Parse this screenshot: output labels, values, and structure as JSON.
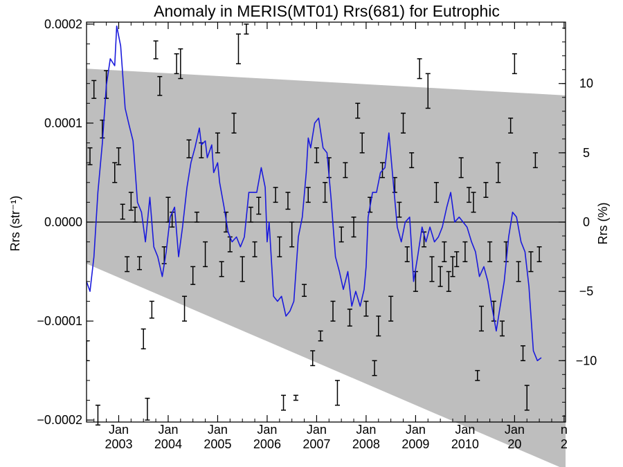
{
  "chart_data": {
    "type": "line",
    "title": "Anomaly in MERIS(MT01) Rrs(681) for Eutrophic",
    "ylabel": "Rrs (str⁻¹)",
    "ylabel_right": "Rrs (%)",
    "xlabel": "",
    "xlim": [
      2002.35,
      2012.03
    ],
    "ylim": [
      -0.000202,
      0.000202
    ],
    "ylim_right": [
      -14.43,
      14.43
    ],
    "x_ticks": [
      {
        "x": 2003.0,
        "line1": "Jan",
        "line2": "2003"
      },
      {
        "x": 2004.0,
        "line1": "Jan",
        "line2": "2004"
      },
      {
        "x": 2005.0,
        "line1": "Jan",
        "line2": "2005"
      },
      {
        "x": 2006.0,
        "line1": "Jan",
        "line2": "2006"
      },
      {
        "x": 2007.0,
        "line1": "Jan",
        "line2": "2007"
      },
      {
        "x": 2008.0,
        "line1": "Jan",
        "line2": "2008"
      },
      {
        "x": 2009.0,
        "line1": "Jan",
        "line2": "2009"
      },
      {
        "x": 2010.0,
        "line1": "Jan",
        "line2": "2010"
      },
      {
        "x": 2011.0,
        "line1": "Jan",
        "line2": "20"
      },
      {
        "x": 2012.0,
        "line1": "n",
        "line2": "2"
      }
    ],
    "y_ticks": [
      {
        "value": 0.0002,
        "label": "0.0002"
      },
      {
        "value": 0.0001,
        "label": "0.0001"
      },
      {
        "value": 0.0,
        "label": "0.0000"
      },
      {
        "value": -0.0001,
        "label": "−0.0001"
      },
      {
        "value": -0.0002,
        "label": "−0.0002"
      }
    ],
    "y_ticks_right": [
      {
        "value": 10,
        "label": "10"
      },
      {
        "value": 5,
        "label": "5"
      },
      {
        "value": 0,
        "label": "0"
      },
      {
        "value": -5,
        "label": "−5"
      },
      {
        "value": -10,
        "label": "−10"
      }
    ],
    "zero_line": 0.0,
    "shaded_band": {
      "color": "#bebebe",
      "upper": [
        [
          2002.35,
          0.000155
        ],
        [
          2012.03,
          0.000128
        ]
      ],
      "lower": [
        [
          2002.35,
          -4.2e-05
        ],
        [
          2012.03,
          -0.00025
        ]
      ]
    },
    "series": [
      {
        "color": "#1a1adc",
        "style": "line",
        "points": [
          [
            2002.35,
            -6e-05
          ],
          [
            2002.42,
            -7e-05
          ],
          [
            2002.5,
            -3.5e-05
          ],
          [
            2002.58,
            3e-05
          ],
          [
            2002.67,
            8e-05
          ],
          [
            2002.75,
            0.000138
          ],
          [
            2002.83,
            0.000165
          ],
          [
            2002.92,
            0.000158
          ],
          [
            2002.96,
            0.000198
          ],
          [
            2003.04,
            0.000178
          ],
          [
            2003.13,
            0.000115
          ],
          [
            2003.21,
            9.8e-05
          ],
          [
            2003.29,
            8.2e-05
          ],
          [
            2003.38,
            2e-05
          ],
          [
            2003.46,
            1e-05
          ],
          [
            2003.54,
            -2e-05
          ],
          [
            2003.63,
            2.5e-05
          ],
          [
            2003.71,
            -2.5e-05
          ],
          [
            2003.79,
            -3.5e-05
          ],
          [
            2003.88,
            -5.5e-05
          ],
          [
            2003.96,
            -3e-05
          ],
          [
            2004.04,
            5e-06
          ],
          [
            2004.13,
            1.5e-05
          ],
          [
            2004.21,
            -3.5e-05
          ],
          [
            2004.29,
            -5e-06
          ],
          [
            2004.38,
            3.5e-05
          ],
          [
            2004.46,
            6e-05
          ],
          [
            2004.54,
            7.5e-05
          ],
          [
            2004.63,
            9.5e-05
          ],
          [
            2004.67,
            7.8e-05
          ],
          [
            2004.75,
            8.2e-05
          ],
          [
            2004.79,
            6.5e-05
          ],
          [
            2004.88,
            7.8e-05
          ],
          [
            2004.92,
            5e-05
          ],
          [
            2005.0,
            6e-05
          ],
          [
            2005.04,
            4e-05
          ],
          [
            2005.13,
            1.5e-05
          ],
          [
            2005.21,
            -1e-05
          ],
          [
            2005.29,
            -2e-05
          ],
          [
            2005.38,
            -1.5e-05
          ],
          [
            2005.46,
            -2.5e-05
          ],
          [
            2005.54,
            -1.5e-05
          ],
          [
            2005.63,
            3e-05
          ],
          [
            2005.71,
            3e-05
          ],
          [
            2005.79,
            3e-05
          ],
          [
            2005.88,
            5.5e-05
          ],
          [
            2005.96,
            3.5e-05
          ],
          [
            2006.0,
            -2e-05
          ],
          [
            2006.04,
            0.0
          ],
          [
            2006.13,
            -7.5e-05
          ],
          [
            2006.21,
            -8e-05
          ],
          [
            2006.29,
            -7.5e-05
          ],
          [
            2006.38,
            -9.5e-05
          ],
          [
            2006.46,
            -9e-05
          ],
          [
            2006.54,
            -8e-05
          ],
          [
            2006.63,
            -1.5e-05
          ],
          [
            2006.71,
            5e-06
          ],
          [
            2006.79,
            5e-05
          ],
          [
            2006.83,
            8.5e-05
          ],
          [
            2006.88,
            7.5e-05
          ],
          [
            2006.96,
            0.0001
          ],
          [
            2007.04,
            0.000105
          ],
          [
            2007.13,
            7.5e-05
          ],
          [
            2007.21,
            7e-05
          ],
          [
            2007.29,
            2.5e-05
          ],
          [
            2007.38,
            -3.5e-05
          ],
          [
            2007.46,
            -5e-05
          ],
          [
            2007.54,
            -6.8e-05
          ],
          [
            2007.63,
            -5e-05
          ],
          [
            2007.71,
            -8.5e-05
          ],
          [
            2007.79,
            -7e-05
          ],
          [
            2007.88,
            -8.5e-05
          ],
          [
            2007.96,
            -6.8e-05
          ],
          [
            2008.0,
            -4.5e-05
          ],
          [
            2008.04,
            5e-06
          ],
          [
            2008.13,
            3e-05
          ],
          [
            2008.21,
            3e-05
          ],
          [
            2008.29,
            5e-05
          ],
          [
            2008.38,
            5.5e-05
          ],
          [
            2008.46,
            9e-05
          ],
          [
            2008.54,
            4.5e-05
          ],
          [
            2008.63,
            -5e-06
          ],
          [
            2008.71,
            -2e-05
          ],
          [
            2008.79,
            0.0
          ],
          [
            2008.88,
            5e-06
          ],
          [
            2008.96,
            -6e-05
          ],
          [
            2009.04,
            -3.5e-05
          ],
          [
            2009.13,
            -5e-06
          ],
          [
            2009.21,
            -2e-05
          ],
          [
            2009.29,
            -5e-06
          ],
          [
            2009.38,
            -2e-05
          ],
          [
            2009.46,
            -1.5e-05
          ],
          [
            2009.54,
            -5e-06
          ],
          [
            2009.63,
            1.5e-05
          ],
          [
            2009.71,
            3e-05
          ],
          [
            2009.79,
            0.0
          ],
          [
            2009.88,
            5e-06
          ],
          [
            2009.96,
            0.0
          ],
          [
            2010.04,
            -5e-06
          ],
          [
            2010.13,
            -2e-05
          ],
          [
            2010.21,
            -3e-05
          ],
          [
            2010.29,
            -5.5e-05
          ],
          [
            2010.38,
            -4.5e-05
          ],
          [
            2010.46,
            -6e-05
          ],
          [
            2010.54,
            -8.5e-05
          ],
          [
            2010.63,
            -0.00011
          ],
          [
            2010.71,
            -8.5e-05
          ],
          [
            2010.79,
            -6e-05
          ],
          [
            2010.88,
            -1.5e-05
          ],
          [
            2010.96,
            1e-05
          ],
          [
            2011.04,
            5e-06
          ],
          [
            2011.13,
            -2e-05
          ],
          [
            2011.21,
            -3e-05
          ],
          [
            2011.29,
            -6.5e-05
          ],
          [
            2011.38,
            -0.00013
          ],
          [
            2011.46,
            -0.00014
          ],
          [
            2011.54,
            -0.000137
          ]
        ]
      },
      {
        "color": "#000000",
        "style": "errorbar",
        "bars": [
          [
            2002.35,
            -0.00012,
            -0.00014
          ],
          [
            2002.42,
            7.5e-05,
            5.8e-05
          ],
          [
            2002.5,
            0.000143,
            0.000125
          ],
          [
            2002.58,
            -0.000185,
            -0.000205
          ],
          [
            2002.67,
            0.000103,
            8.5e-05
          ],
          [
            2002.75,
            0.000153,
            0.000125
          ],
          [
            2002.92,
            6e-05,
            4e-05
          ],
          [
            2003.0,
            7.5e-05,
            5.8e-05
          ],
          [
            2003.08,
            1.8e-05,
            3e-06
          ],
          [
            2003.17,
            -3.5e-05,
            -5e-05
          ],
          [
            2003.25,
            3e-05,
            1.2e-05
          ],
          [
            2003.33,
            1.5e-05,
            0.0
          ],
          [
            2003.42,
            -3.5e-05,
            -4.8e-05
          ],
          [
            2003.5,
            -0.000108,
            -0.000128
          ],
          [
            2003.58,
            -0.000178,
            -0.0002
          ],
          [
            2003.67,
            -8e-05,
            -9.7e-05
          ],
          [
            2003.75,
            0.000183,
            0.000165
          ],
          [
            2003.83,
            0.000147,
            0.000128
          ],
          [
            2003.92,
            -2.5e-05,
            -4.2e-05
          ],
          [
            2004.0,
            2.5e-05,
            0.0
          ],
          [
            2004.08,
            1e-05,
            -5e-06
          ],
          [
            2004.17,
            0.00017,
            0.00015
          ],
          [
            2004.25,
            0.000175,
            0.000145
          ],
          [
            2004.33,
            -7.5e-05,
            -0.0001
          ],
          [
            2004.42,
            8.3e-05,
            6.5e-05
          ],
          [
            2004.5,
            -4.5e-05,
            -6.3e-05
          ],
          [
            2004.58,
            1e-05,
            0.0
          ],
          [
            2004.67,
            8e-05,
            6.5e-05
          ],
          [
            2004.75,
            -2e-05,
            -4.5e-05
          ],
          [
            2005.0,
            9e-05,
            7e-05
          ],
          [
            2005.08,
            -4e-05,
            -5.5e-05
          ],
          [
            2005.17,
            1e-05,
            -1e-05
          ],
          [
            2005.25,
            -1.5e-05,
            -3e-05
          ],
          [
            2005.33,
            0.00011,
            9e-05
          ],
          [
            2005.42,
            0.00019,
            0.00016
          ],
          [
            2005.5,
            -3.5e-05,
            -6e-05
          ],
          [
            2005.58,
            0.0002,
            0.00019
          ],
          [
            2005.67,
            1.5e-05,
            0.0
          ],
          [
            2005.75,
            -2e-05,
            -3.5e-05
          ],
          [
            2005.83,
            2.5e-05,
            8e-06
          ],
          [
            2006.17,
            3.5e-05,
            2e-05
          ],
          [
            2006.25,
            -1.5e-05,
            -3.5e-05
          ],
          [
            2006.33,
            -0.000175,
            -0.00019
          ],
          [
            2006.42,
            3e-05,
            1.3e-05
          ],
          [
            2006.5,
            0.0,
            -2.5e-05
          ],
          [
            2006.58,
            -0.000175,
            -0.00018
          ],
          [
            2006.75,
            -6.3e-05,
            -7.5e-05
          ],
          [
            2006.83,
            3.5e-05,
            2e-05
          ],
          [
            2006.92,
            -0.00013,
            -0.000145
          ],
          [
            2007.0,
            7.5e-05,
            6e-05
          ],
          [
            2007.08,
            -0.00011,
            -0.00012
          ],
          [
            2007.17,
            4e-05,
            2e-05
          ],
          [
            2007.25,
            6.5e-05,
            4.5e-05
          ],
          [
            2007.33,
            -8e-05,
            -0.0001
          ],
          [
            2007.42,
            -0.00016,
            -0.000185
          ],
          [
            2007.5,
            -5e-06,
            -2e-05
          ],
          [
            2007.58,
            6e-05,
            4.5e-05
          ],
          [
            2007.67,
            -8.8e-05,
            -0.000105
          ],
          [
            2007.75,
            5e-06,
            -1.5e-05
          ],
          [
            2007.83,
            0.00012,
            0.000105
          ],
          [
            2007.92,
            9e-05,
            7e-05
          ],
          [
            2008.0,
            -8e-05,
            -9.5e-05
          ],
          [
            2008.08,
            2.5e-05,
            1e-05
          ],
          [
            2008.17,
            -0.00014,
            -0.000155
          ],
          [
            2008.25,
            -9.5e-05,
            -0.000115
          ],
          [
            2008.33,
            6e-05,
            4.5e-05
          ],
          [
            2008.5,
            -7.5e-05,
            -0.0001
          ],
          [
            2008.58,
            4.5e-05,
            3e-05
          ],
          [
            2008.67,
            2e-05,
            5e-06
          ],
          [
            2008.75,
            0.00011,
            9e-05
          ],
          [
            2008.83,
            -2.5e-05,
            -4e-05
          ],
          [
            2008.92,
            7e-05,
            5.5e-05
          ],
          [
            2009.0,
            -5e-05,
            -7e-05
          ],
          [
            2009.08,
            0.000165,
            0.000145
          ],
          [
            2009.17,
            -1e-05,
            -2.5e-05
          ],
          [
            2009.25,
            0.00015,
            0.000115
          ],
          [
            2009.33,
            -3.5e-05,
            -6e-05
          ],
          [
            2009.42,
            4e-05,
            2e-05
          ],
          [
            2009.5,
            -4.5e-05,
            -6.5e-05
          ],
          [
            2009.58,
            -2e-05,
            -4e-05
          ],
          [
            2009.67,
            -5e-05,
            -7e-05
          ],
          [
            2009.75,
            -3.5e-05,
            -5.5e-05
          ],
          [
            2009.83,
            -3e-05,
            -4.5e-05
          ],
          [
            2009.92,
            6.5e-05,
            4.5e-05
          ],
          [
            2010.0,
            -2e-05,
            -4e-05
          ],
          [
            2010.08,
            3.5e-05,
            2e-05
          ],
          [
            2010.17,
            3e-05,
            1e-05
          ],
          [
            2010.25,
            -0.00015,
            -0.00016
          ],
          [
            2010.33,
            -8.5e-05,
            -0.00011
          ],
          [
            2010.42,
            4e-05,
            2.5e-05
          ],
          [
            2010.5,
            -2e-05,
            -4e-05
          ],
          [
            2010.58,
            -8e-05,
            -0.0001
          ],
          [
            2010.67,
            6e-05,
            4e-05
          ],
          [
            2010.75,
            -0.0001,
            -0.000115
          ],
          [
            2010.83,
            -2e-05,
            -4e-05
          ],
          [
            2010.92,
            0.000105,
            9e-05
          ],
          [
            2011.0,
            0.00017,
            0.00015
          ],
          [
            2011.08,
            -4e-05,
            -6e-05
          ],
          [
            2011.17,
            -0.000125,
            -0.00014
          ],
          [
            2011.25,
            -0.000165,
            -0.00019
          ],
          [
            2011.33,
            -3e-05,
            -5e-05
          ],
          [
            2011.42,
            7e-05,
            5.5e-05
          ],
          [
            2011.5,
            -2.5e-05,
            -4e-05
          ]
        ]
      }
    ],
    "grid": false,
    "legend": "none"
  }
}
